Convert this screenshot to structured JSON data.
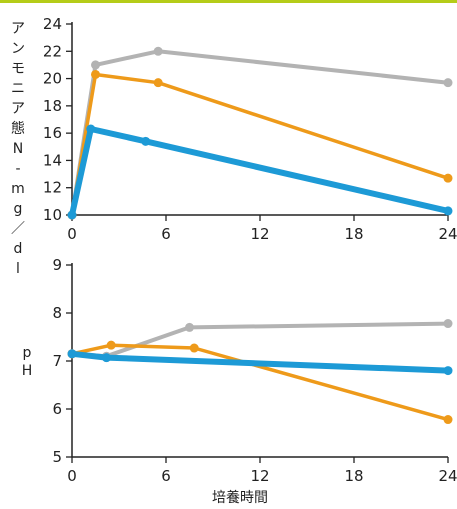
{
  "colors": {
    "top_bar": "#b5cc18",
    "axis": "#222222",
    "gray": "#b3b3b3",
    "orange": "#ee9a1a",
    "blue": "#1d9ad6"
  },
  "chart_data": [
    {
      "type": "line",
      "ylabel": "アンモニア態N-mg／dl",
      "xlabel": "",
      "xlim": [
        0,
        24
      ],
      "ylim": [
        10,
        24
      ],
      "x_ticks": [
        "0",
        "6",
        "12",
        "18",
        "24"
      ],
      "y_ticks": [
        "10",
        "12",
        "14",
        "16",
        "18",
        "20",
        "22",
        "24"
      ],
      "grid": false,
      "series": [
        {
          "color": "#b3b3b3",
          "width": 4,
          "x": [
            0,
            1.5,
            5.5,
            24
          ],
          "y": [
            10,
            21,
            22,
            19.7
          ]
        },
        {
          "color": "#ee9a1a",
          "width": 3.5,
          "x": [
            0,
            1.5,
            5.5,
            24
          ],
          "y": [
            10,
            20.3,
            19.7,
            12.7
          ]
        },
        {
          "color": "#1d9ad6",
          "width": 6,
          "x": [
            0,
            1.2,
            4.7,
            24
          ],
          "y": [
            10,
            16.3,
            15.4,
            10.3
          ]
        }
      ]
    },
    {
      "type": "line",
      "ylabel": "pH",
      "xlabel": "培養時間",
      "xlim": [
        0,
        24
      ],
      "ylim": [
        5,
        9
      ],
      "x_ticks": [
        "0",
        "6",
        "12",
        "18",
        "24"
      ],
      "y_ticks": [
        "5",
        "6",
        "7",
        "8",
        "9"
      ],
      "grid": false,
      "series": [
        {
          "color": "#b3b3b3",
          "width": 4,
          "x": [
            0,
            2.2,
            7.5,
            24
          ],
          "y": [
            7.15,
            7.1,
            7.7,
            7.78
          ]
        },
        {
          "color": "#ee9a1a",
          "width": 3.5,
          "x": [
            0,
            2.5,
            7.8,
            24
          ],
          "y": [
            7.15,
            7.33,
            7.27,
            5.78
          ]
        },
        {
          "color": "#1d9ad6",
          "width": 6,
          "x": [
            0,
            2.2,
            24
          ],
          "y": [
            7.15,
            7.07,
            6.8
          ]
        }
      ]
    }
  ]
}
